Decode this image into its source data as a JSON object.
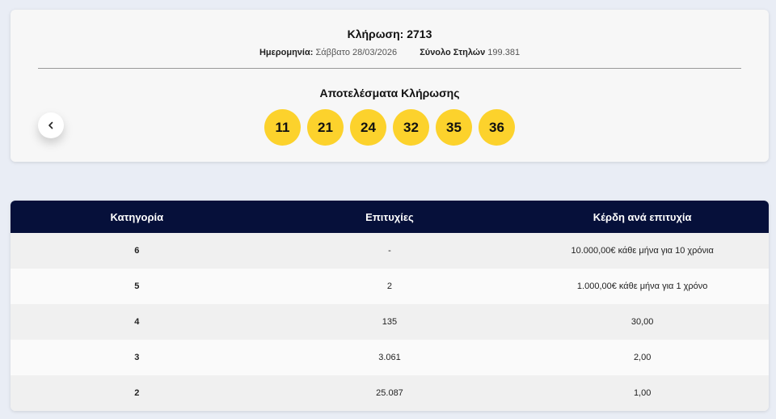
{
  "draw": {
    "title": "Κλήρωση: 2713",
    "date_label": "Ημερομηνία:",
    "date_value": "Σάββατο 28/03/2026",
    "total_label": "Σύνολο Στηλών",
    "total_value": "199.381",
    "results_title": "Αποτελέσματα Κλήρωσης",
    "numbers": [
      "11",
      "21",
      "24",
      "32",
      "35",
      "36"
    ],
    "ball_color": "#fcd22c",
    "prev_icon": "chevron-left-icon"
  },
  "table": {
    "header_color": "#06103a",
    "headers": {
      "category": "Κατηγορία",
      "winners": "Επιτυχίες",
      "prize": "Κέρδη ανά επιτυχία"
    },
    "rows": [
      {
        "category": "6",
        "winners": "-",
        "prize": "10.000,00€ κάθε μήνα για 10 χρόνια"
      },
      {
        "category": "5",
        "winners": "2",
        "prize": "1.000,00€ κάθε μήνα για 1 χρόνο"
      },
      {
        "category": "4",
        "winners": "135",
        "prize": "30,00"
      },
      {
        "category": "3",
        "winners": "3.061",
        "prize": "2,00"
      },
      {
        "category": "2",
        "winners": "25.087",
        "prize": "1,00"
      }
    ]
  }
}
